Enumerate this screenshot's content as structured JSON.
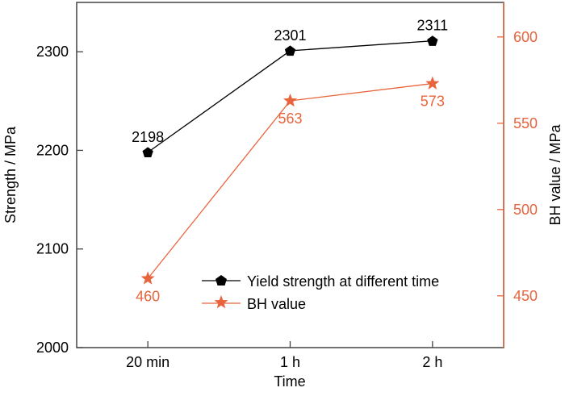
{
  "chart_data": {
    "type": "line",
    "categories": [
      "20 min",
      "1 h",
      "2 h"
    ],
    "xlabel": "Time",
    "ylabel": "Strength / MPa",
    "ylabel_right": "BH value / MPa",
    "ylim": [
      2000,
      2350
    ],
    "ylim_right": [
      420,
      620
    ],
    "yticks": [
      2000,
      2100,
      2200,
      2300
    ],
    "yticks_right": [
      450,
      500,
      550,
      600
    ],
    "legend_position": "bottom-right",
    "series": [
      {
        "name": "Yield strength at different time",
        "axis": "left",
        "marker": "pentagon",
        "color": "#000000",
        "values": [
          2198,
          2301,
          2311
        ],
        "labels": [
          "2198",
          "2301",
          "2311"
        ]
      },
      {
        "name": "BH value",
        "axis": "right",
        "marker": "star",
        "color": "#e8643c",
        "values": [
          460,
          563,
          573
        ],
        "labels": [
          "460",
          "563",
          "573"
        ]
      }
    ]
  }
}
